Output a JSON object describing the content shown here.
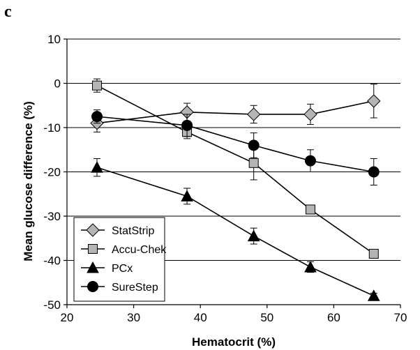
{
  "panel_label": "c",
  "chart_data": {
    "type": "line",
    "xlabel": "Hematocrit (%)",
    "ylabel": "Mean glucose difference (%)",
    "xlim": [
      20,
      70
    ],
    "ylim": [
      -50,
      10
    ],
    "x_ticks": [
      20,
      30,
      40,
      50,
      60,
      70
    ],
    "y_ticks": [
      10,
      0,
      -10,
      -20,
      -30,
      -40,
      -50
    ],
    "grid": "horizontal",
    "legend_position": "bottom-left",
    "series": [
      {
        "name": "StatStrip",
        "marker": "diamond",
        "fill": "#b4b4b4",
        "x": [
          24.5,
          38,
          48,
          56.5,
          66
        ],
        "y": [
          -9,
          -6.5,
          -7,
          -7,
          -4
        ],
        "err": [
          2.0,
          2.0,
          2.0,
          2.3,
          3.8
        ]
      },
      {
        "name": "Accu-Chek",
        "marker": "square",
        "fill": "#b4b4b4",
        "x": [
          24.5,
          38,
          48,
          56.5,
          66
        ],
        "y": [
          -0.5,
          -11,
          -18,
          -28.5,
          -38.5
        ],
        "err": [
          1.5,
          1.5,
          3.8,
          0.8,
          0.6
        ]
      },
      {
        "name": "PCx",
        "marker": "triangle",
        "fill": "#000000",
        "x": [
          24.5,
          38,
          48,
          56.5,
          66
        ],
        "y": [
          -19,
          -25.5,
          -34.5,
          -41.5,
          -48
        ],
        "err": [
          2.0,
          1.8,
          1.8,
          1.2,
          0.6
        ]
      },
      {
        "name": "SureStep",
        "marker": "circle",
        "fill": "#000000",
        "x": [
          24.5,
          38,
          48,
          56.5,
          66
        ],
        "y": [
          -7.5,
          -9.5,
          -14,
          -17.5,
          -20
        ],
        "err": [
          1.5,
          2.5,
          2.8,
          2.5,
          3.0
        ]
      }
    ]
  }
}
